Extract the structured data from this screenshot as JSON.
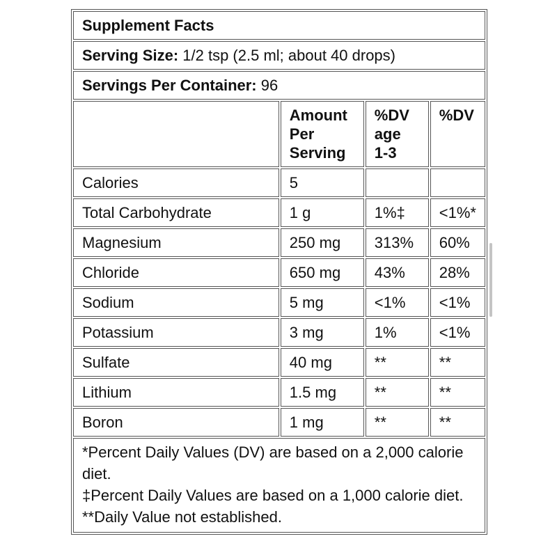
{
  "title": "Supplement Facts",
  "serving_size": {
    "label": "Serving Size:",
    "value": " 1/2 tsp (2.5 ml; about 40 drops)"
  },
  "servings_per_container": {
    "label": "Servings Per Container:",
    "value": " 96"
  },
  "columns": {
    "amount": [
      "Amount",
      "Per",
      "Serving"
    ],
    "dv_child": [
      "%DV",
      "age",
      "1-3"
    ],
    "dv": "%DV"
  },
  "rows": [
    {
      "name": "Calories",
      "amount": "5",
      "dv_child": "",
      "dv": ""
    },
    {
      "name": "Total Carbohydrate",
      "amount": "1 g",
      "dv_child": "1%‡",
      "dv": "<1%*"
    },
    {
      "name": "Magnesium",
      "amount": "250 mg",
      "dv_child": "313%",
      "dv": "60%"
    },
    {
      "name": "Chloride",
      "amount": "650 mg",
      "dv_child": "43%",
      "dv": "28%"
    },
    {
      "name": "Sodium",
      "amount": "5 mg",
      "dv_child": "<1%",
      "dv": "<1%"
    },
    {
      "name": "Potassium",
      "amount": "3 mg",
      "dv_child": "1%",
      "dv": "<1%"
    },
    {
      "name": "Sulfate",
      "amount": "40 mg",
      "dv_child": "**",
      "dv": "**"
    },
    {
      "name": "Lithium",
      "amount": "1.5 mg",
      "dv_child": "**",
      "dv": "**"
    },
    {
      "name": "Boron",
      "amount": "1 mg",
      "dv_child": "**",
      "dv": "**"
    }
  ],
  "footnotes": [
    "*Percent Daily Values (DV) are based on a 2,000 calorie diet.",
    "‡Percent Daily Values are based on a 1,000 calorie diet.",
    "**Daily Value not established."
  ]
}
